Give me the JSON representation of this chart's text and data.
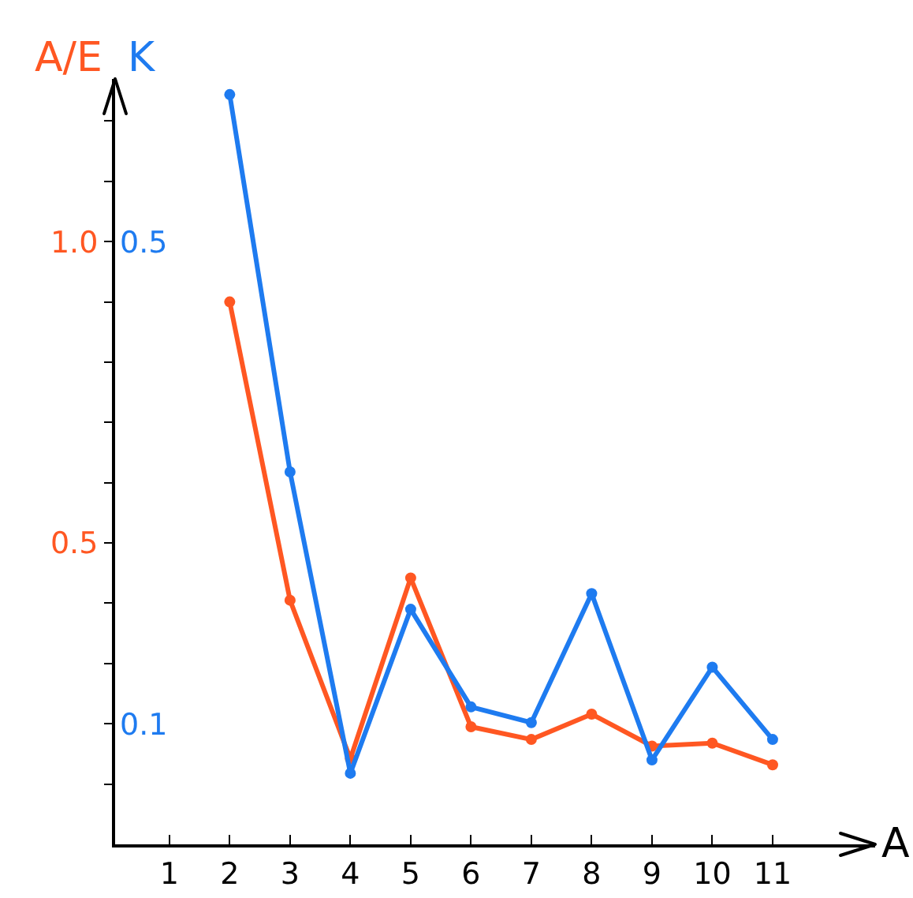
{
  "chart_data": {
    "type": "line",
    "xlabel": "A",
    "ylabel": "A/E",
    "y2label": "K",
    "xlim": [
      0.1,
      12.7
    ],
    "xticks": [
      1,
      2,
      3,
      4,
      5,
      6,
      7,
      8,
      9,
      10,
      11
    ],
    "ylim": [
      0,
      1.27
    ],
    "yticks": [
      {
        "value": 0.1,
        "label": null
      },
      {
        "value": 0.2,
        "label": null
      },
      {
        "value": 0.3,
        "label": null
      },
      {
        "value": 0.4,
        "label": null
      },
      0.5,
      {
        "value": 0.6,
        "label": null
      },
      {
        "value": 0.7,
        "label": null
      },
      {
        "value": 0.8,
        "label": null
      },
      {
        "value": 0.9,
        "label": null
      },
      {
        "value": 1.0,
        "label": "1.0"
      },
      {
        "value": 1.1,
        "label": null
      },
      {
        "value": 1.2,
        "label": null
      }
    ],
    "y2lim": [
      0,
      0.635
    ],
    "y2ticks": [
      0.1,
      0.5
    ],
    "x": [
      2,
      3,
      4,
      5,
      6,
      7,
      8,
      9,
      10,
      11
    ],
    "marker": "circle",
    "line_style": "solid",
    "series": [
      {
        "color": "#ff5722",
        "values": [
          0.9,
          0.405,
          0.142,
          0.442,
          0.195,
          0.174,
          0.216,
          0.163,
          0.168,
          0.132
        ]
      },
      {
        "color": "#1e7bf0",
        "axis": "y2",
        "values": [
          0.622,
          0.309,
          0.059,
          0.195,
          0.114,
          0.101,
          0.208,
          0.07,
          0.147,
          0.087
        ]
      }
    ]
  }
}
